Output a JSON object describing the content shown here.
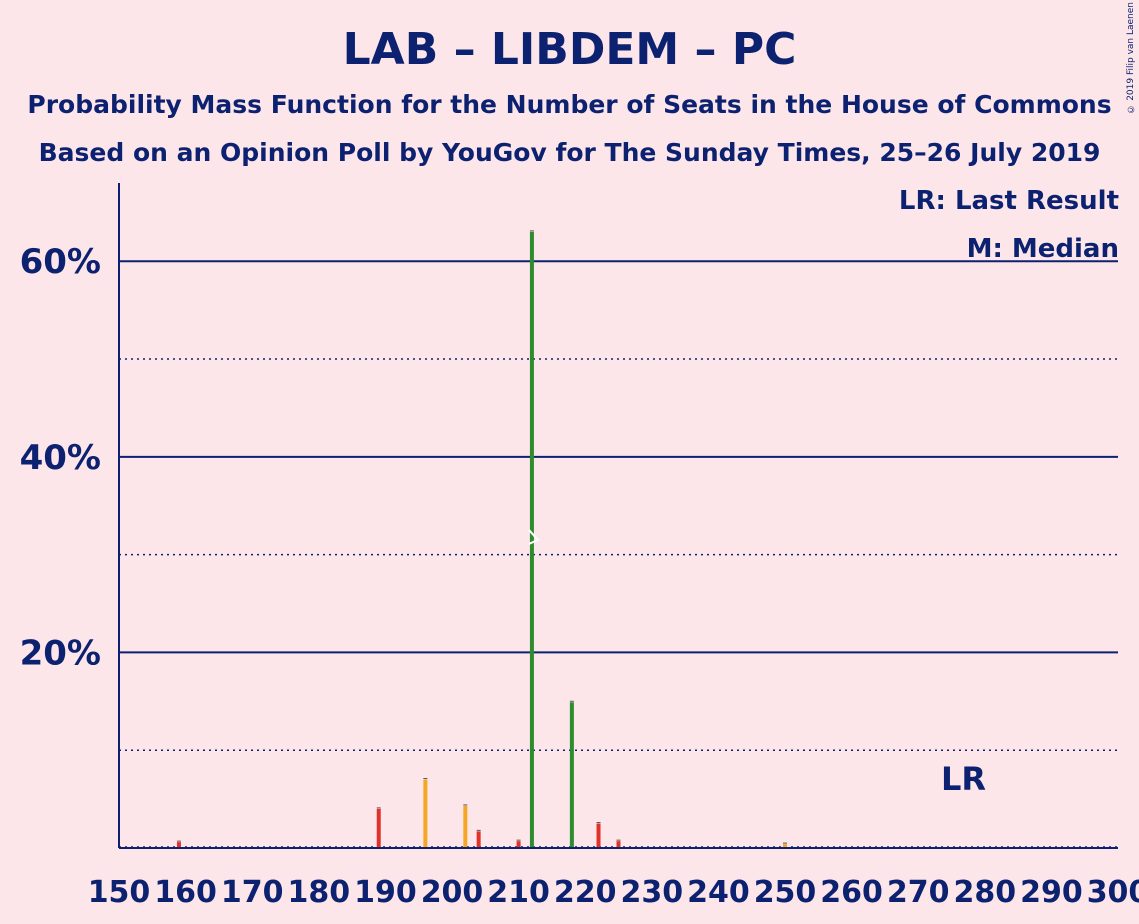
{
  "header": {
    "title": "LAB – LIBDEM – PC",
    "subtitle1": "Probability Mass Function for the Number of Seats in the House of Commons",
    "subtitle2": "Based on an Opinion Poll by YouGov for The Sunday Times, 25–26 July 2019",
    "copyright": "© 2019 Filip van Laenen"
  },
  "legend": {
    "last_result": "LR: Last Result",
    "median": "M: Median"
  },
  "colors": {
    "background": "#fde6e9",
    "axis": "#0c2270",
    "red": "#e0312a",
    "orange": "#f5a623",
    "green": "#2e8b2e"
  },
  "chart_data": {
    "type": "bar",
    "title": "LAB – LIBDEM – PC",
    "xlabel": "",
    "ylabel": "",
    "xlim": [
      150,
      300
    ],
    "ylim": [
      0,
      68
    ],
    "x_ticks": [
      150,
      160,
      170,
      180,
      190,
      200,
      210,
      220,
      230,
      240,
      250,
      260,
      270,
      280,
      290,
      300
    ],
    "y_ticks_labeled": [
      {
        "value": 20,
        "label": "20%"
      },
      {
        "value": 40,
        "label": "40%"
      },
      {
        "value": 60,
        "label": "60%"
      }
    ],
    "y_gridlines_solid": [
      20,
      40,
      60
    ],
    "y_gridlines_dotted": [
      10,
      30,
      50
    ],
    "last_result": {
      "seats": 278,
      "label": "LR"
    },
    "median": {
      "seats": 212,
      "label": "M"
    },
    "bars": [
      {
        "seats": 159,
        "value": 0.6,
        "color": "red"
      },
      {
        "seats": 189,
        "value": 4.0,
        "color": "red"
      },
      {
        "seats": 196,
        "value": 7.0,
        "color": "orange"
      },
      {
        "seats": 202,
        "value": 4.3,
        "color": "orange"
      },
      {
        "seats": 204,
        "value": 1.7,
        "color": "red"
      },
      {
        "seats": 210,
        "value": 0.7,
        "color": "red"
      },
      {
        "seats": 212,
        "value": 63.0,
        "color": "green"
      },
      {
        "seats": 218,
        "value": 14.9,
        "color": "green"
      },
      {
        "seats": 222,
        "value": 2.5,
        "color": "red"
      },
      {
        "seats": 225,
        "value": 0.7,
        "color": "red"
      },
      {
        "seats": 250,
        "value": 0.4,
        "color": "orange"
      }
    ]
  }
}
